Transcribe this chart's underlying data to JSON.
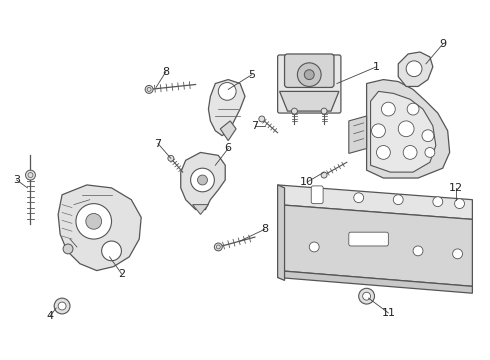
{
  "background_color": "#ffffff",
  "line_color": "#555555",
  "lw": 0.9,
  "fig_w": 4.9,
  "fig_h": 3.6,
  "dpi": 100
}
